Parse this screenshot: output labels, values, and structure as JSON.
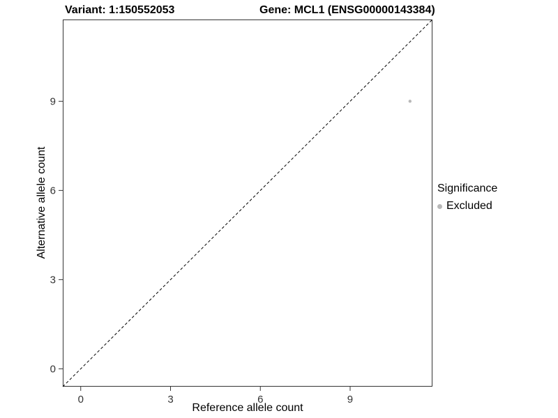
{
  "chart_data": {
    "type": "scatter",
    "title_left": "Variant: 1:150552053",
    "title_right": "Gene: MCL1 (ENSG00000143384)",
    "xlabel": "Reference allele count",
    "ylabel": "Alternative allele count",
    "xlim": [
      -0.6,
      11.75
    ],
    "ylim": [
      -0.6,
      11.75
    ],
    "xticks": [
      0,
      3,
      6,
      9
    ],
    "yticks": [
      0,
      3,
      6,
      9
    ],
    "grid": false,
    "panel_border": true,
    "legend_position": "right",
    "legend_title": "Significance",
    "series": [
      {
        "name": "Excluded",
        "color": "#b8b8b8",
        "points": [
          [
            11,
            9
          ]
        ]
      }
    ],
    "reference_line": {
      "kind": "identity",
      "style": "dashed",
      "color": "#000000"
    }
  },
  "colors": {
    "axis_text": "#333333",
    "panel_border": "#333333",
    "point": "#b8b8b8"
  }
}
